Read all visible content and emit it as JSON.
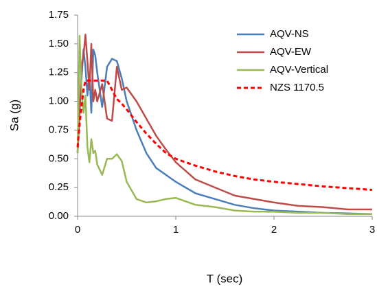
{
  "chart_data": {
    "type": "line",
    "x_label": "T (sec)",
    "y_label": "Sa (g)",
    "x": [
      0,
      0.02,
      0.04,
      0.06,
      0.08,
      0.1,
      0.12,
      0.14,
      0.16,
      0.18,
      0.2,
      0.25,
      0.3,
      0.35,
      0.4,
      0.45,
      0.5,
      0.6,
      0.7,
      0.8,
      0.9,
      1.0,
      1.2,
      1.4,
      1.6,
      1.8,
      2.0,
      2.25,
      2.5,
      2.75,
      3.0
    ],
    "series": [
      {
        "name": "AQV-NS",
        "color": "#4a7ebb",
        "dashed": false,
        "values": [
          0.55,
          0.9,
          1.2,
          1.45,
          1.3,
          1.05,
          1.25,
          0.9,
          1.45,
          1.4,
          1.25,
          0.95,
          1.3,
          1.37,
          1.35,
          1.2,
          1.0,
          0.75,
          0.55,
          0.42,
          0.36,
          0.3,
          0.2,
          0.15,
          0.1,
          0.07,
          0.05,
          0.04,
          0.03,
          0.025,
          0.02
        ]
      },
      {
        "name": "AQV-EW",
        "color": "#be4b48",
        "dashed": false,
        "values": [
          0.55,
          0.9,
          1.3,
          1.4,
          1.58,
          1.35,
          1.1,
          1.5,
          1.0,
          1.1,
          1.0,
          1.15,
          0.85,
          0.83,
          1.3,
          1.1,
          1.12,
          1.0,
          0.85,
          0.7,
          0.58,
          0.47,
          0.32,
          0.25,
          0.18,
          0.15,
          0.12,
          0.09,
          0.08,
          0.06,
          0.06
        ]
      },
      {
        "name": "AQV-Vertical",
        "color": "#98b954",
        "dashed": false,
        "values": [
          0.55,
          1.57,
          1.1,
          0.9,
          1.05,
          0.6,
          0.47,
          0.67,
          0.55,
          0.57,
          0.45,
          0.36,
          0.5,
          0.5,
          0.54,
          0.48,
          0.3,
          0.15,
          0.12,
          0.13,
          0.15,
          0.16,
          0.1,
          0.08,
          0.05,
          0.04,
          0.04,
          0.03,
          0.03,
          0.02,
          0.02
        ]
      },
      {
        "name": "NZS 1170.5",
        "color": "#ff0000",
        "dashed": true,
        "values": [
          0.6,
          0.8,
          0.95,
          1.1,
          1.18,
          1.18,
          1.18,
          1.18,
          1.18,
          1.18,
          1.18,
          1.18,
          1.18,
          1.1,
          1.02,
          0.98,
          0.93,
          0.82,
          0.72,
          0.63,
          0.55,
          0.5,
          0.44,
          0.39,
          0.35,
          0.32,
          0.3,
          0.28,
          0.26,
          0.245,
          0.23
        ]
      }
    ],
    "xlim": [
      0,
      3
    ],
    "xticks": [
      0,
      1,
      2,
      3
    ],
    "ylim": [
      0,
      1.75
    ],
    "yticks": [
      {
        "value": 0,
        "label": "0.00"
      },
      {
        "value": 0.25,
        "label": "0.25"
      },
      {
        "value": 0.5,
        "label": "0.50"
      },
      {
        "value": 0.75,
        "label": "0.75"
      },
      {
        "value": 1,
        "label": "1.00"
      },
      {
        "value": 1.25,
        "label": "1.25"
      },
      {
        "value": 1.5,
        "label": "1.50"
      },
      {
        "value": 1.75,
        "label": "1.75"
      }
    ],
    "grid": false,
    "legend": "top-right"
  }
}
